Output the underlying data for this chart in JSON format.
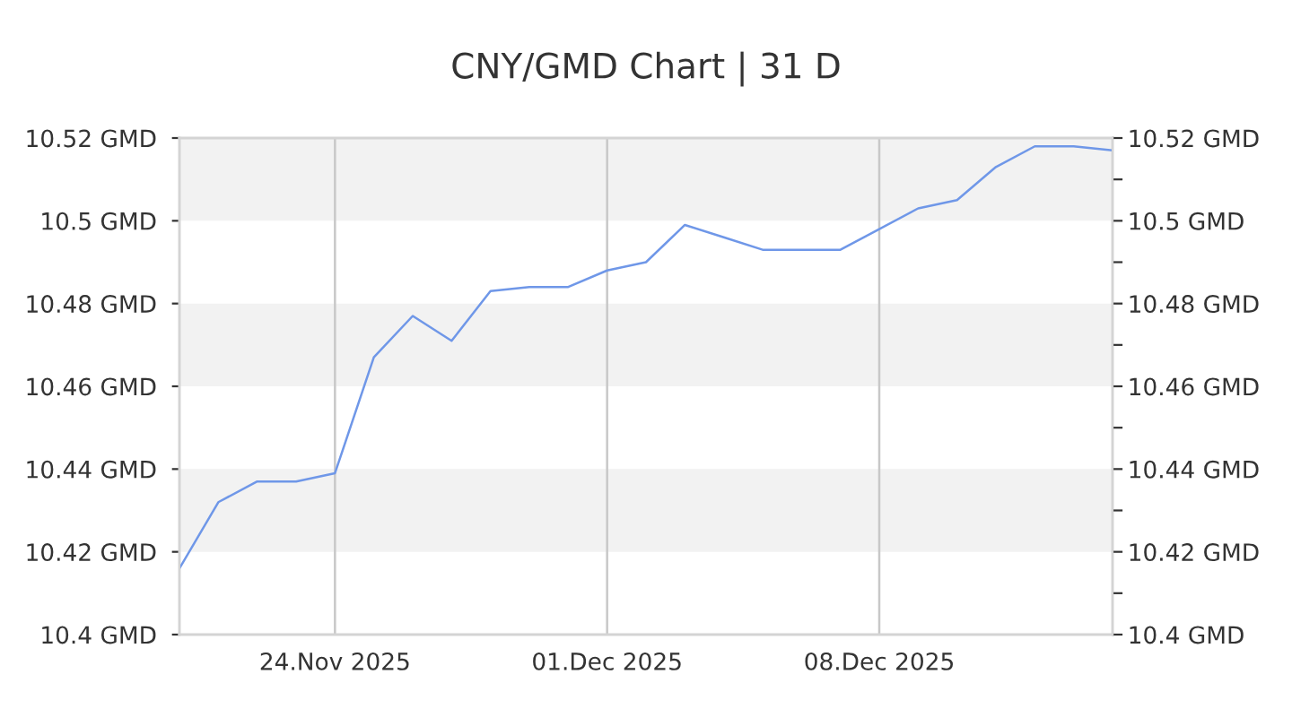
{
  "chart_data": {
    "type": "line",
    "title": "CNY/GMD Chart | 31 D",
    "x": [
      "2025-11-20",
      "2025-11-21",
      "2025-11-22",
      "2025-11-23",
      "2025-11-24",
      "2025-11-25",
      "2025-11-26",
      "2025-11-27",
      "2025-11-28",
      "2025-11-29",
      "2025-11-30",
      "2025-12-01",
      "2025-12-02",
      "2025-12-03",
      "2025-12-04",
      "2025-12-05",
      "2025-12-06",
      "2025-12-07",
      "2025-12-08",
      "2025-12-09",
      "2025-12-10",
      "2025-12-11",
      "2025-12-12",
      "2025-12-13",
      "2025-12-14"
    ],
    "series": [
      {
        "color": "#6f97e8",
        "values": [
          10.416,
          10.432,
          10.437,
          10.437,
          10.439,
          10.467,
          10.477,
          10.471,
          10.483,
          10.484,
          10.484,
          10.488,
          10.49,
          10.499,
          10.496,
          10.493,
          10.493,
          10.493,
          10.498,
          10.503,
          10.505,
          10.513,
          10.518,
          10.518,
          10.517
        ]
      }
    ],
    "xlim": [
      "2025-11-20",
      "2025-12-14"
    ],
    "xticks": [
      {
        "value": "2025-11-24",
        "label": "24.Nov 2025"
      },
      {
        "value": "2025-12-01",
        "label": "01.Dec 2025"
      },
      {
        "value": "2025-12-08",
        "label": "08.Dec 2025"
      }
    ],
    "ylim": [
      10.4,
      10.52
    ],
    "yticks": [
      {
        "value": 10.4,
        "label": "10.4 GMD"
      },
      {
        "value": 10.42,
        "label": "10.42 GMD"
      },
      {
        "value": 10.44,
        "label": "10.44 GMD"
      },
      {
        "value": 10.46,
        "label": "10.46 GMD"
      },
      {
        "value": 10.48,
        "label": "10.48 GMD"
      },
      {
        "value": 10.5,
        "label": "10.5 GMD"
      },
      {
        "value": 10.52,
        "label": "10.52 GMD"
      }
    ],
    "y2lim": [
      10.4,
      10.52
    ],
    "y2ticks": [
      {
        "value": 10.4,
        "label": "10.4 GMD"
      },
      {
        "value": 10.41,
        "label": null
      },
      {
        "value": 10.42,
        "label": "10.42 GMD"
      },
      {
        "value": 10.43,
        "label": null
      },
      {
        "value": 10.44,
        "label": "10.44 GMD"
      },
      {
        "value": 10.45,
        "label": null
      },
      {
        "value": 10.46,
        "label": "10.46 GMD"
      },
      {
        "value": 10.47,
        "label": null
      },
      {
        "value": 10.48,
        "label": "10.48 GMD"
      },
      {
        "value": 10.49,
        "label": null
      },
      {
        "value": 10.5,
        "label": "10.5 GMD"
      },
      {
        "value": 10.51,
        "label": null
      },
      {
        "value": 10.52,
        "label": "10.52 GMD"
      }
    ],
    "grid": true
  }
}
